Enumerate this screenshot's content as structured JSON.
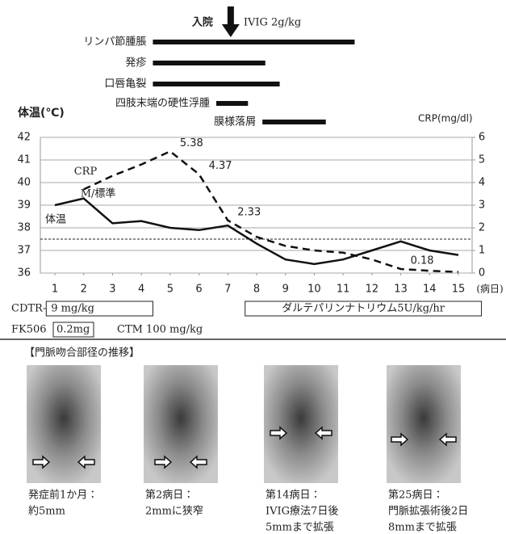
{
  "chart_data": {
    "type": "line",
    "x": [
      1,
      2,
      3,
      4,
      5,
      6,
      7,
      8,
      9,
      10,
      11,
      12,
      13,
      14,
      15
    ],
    "xlim": [
      1,
      15
    ],
    "xticks": [
      1,
      2,
      3,
      4,
      5,
      6,
      7,
      8,
      9,
      10,
      11,
      12,
      13,
      14,
      15
    ],
    "xlabel": "(病日)",
    "ylabel": "体温(℃)",
    "ylim": [
      36,
      42
    ],
    "yticks": [
      36,
      37,
      38,
      39,
      40,
      41,
      42
    ],
    "y2label": "CRP(mg/dl)",
    "y2lim": [
      0,
      6
    ],
    "y2ticks": [
      0,
      1,
      2,
      3,
      4,
      5,
      6
    ],
    "grid": true,
    "reference_line": 37.5,
    "series": [
      {
        "name": "体温",
        "color": "#111111",
        "dash": false,
        "values": [
          39.0,
          39.3,
          38.2,
          38.3,
          38.0,
          37.9,
          38.1,
          37.3,
          36.6,
          36.4,
          36.6,
          37.0,
          37.4,
          37.0,
          36.8
        ]
      },
      {
        "name": "CRP",
        "color": "#111111",
        "dash": true,
        "axis": "y2",
        "values": [
          null,
          3.7,
          4.3,
          4.8,
          5.38,
          4.37,
          2.33,
          1.6,
          1.2,
          1.0,
          0.9,
          0.6,
          0.18,
          0.1,
          0.05
        ],
        "value_labels": [
          null,
          null,
          null,
          null,
          "5.38",
          "4.37",
          "2.33",
          null,
          null,
          null,
          null,
          null,
          "0.18",
          null,
          null
        ]
      }
    ],
    "annotation": "M/標準",
    "admission": {
      "label": "入院",
      "day": 7.1,
      "treatment": "IVIG 2g/kg"
    },
    "symptoms": [
      {
        "name": "リンパ節腫脹",
        "start": 4.4,
        "end": 11.4
      },
      {
        "name": "発疹",
        "start": 4.4,
        "end": 8.3
      },
      {
        "name": "口唇亀裂",
        "start": 4.4,
        "end": 8.8
      },
      {
        "name": "四肢末端の硬性浮腫",
        "start": 6.6,
        "end": 7.7
      },
      {
        "name": "膜様落屑",
        "start": 8.2,
        "end": 10.4
      }
    ],
    "medications": [
      {
        "name": "CDTR-PI",
        "dose": "9 mg/kg",
        "start": 0.7,
        "end": 4.4
      },
      {
        "name": "",
        "dose": "ダルテパリンナトリウム5U/kg/hr",
        "start": 7.6,
        "end": 15.8
      }
    ],
    "fk506": {
      "name": "FK506",
      "dose": "0.2mg",
      "other": "CTM 100 mg/kg"
    }
  },
  "images_section": {
    "title": "【門脈吻合部径の推移】",
    "images": [
      {
        "caption": [
          "発症前1か月：",
          "約5mm"
        ]
      },
      {
        "caption": [
          "第2病日：",
          "2mmに狭窄"
        ]
      },
      {
        "caption": [
          "第14病日：",
          "IVIG療法7日後",
          "5mmまで拡張"
        ]
      },
      {
        "caption": [
          "第25病日：",
          "門脈拡張術後2日",
          "8mmまで拡張"
        ]
      }
    ]
  }
}
